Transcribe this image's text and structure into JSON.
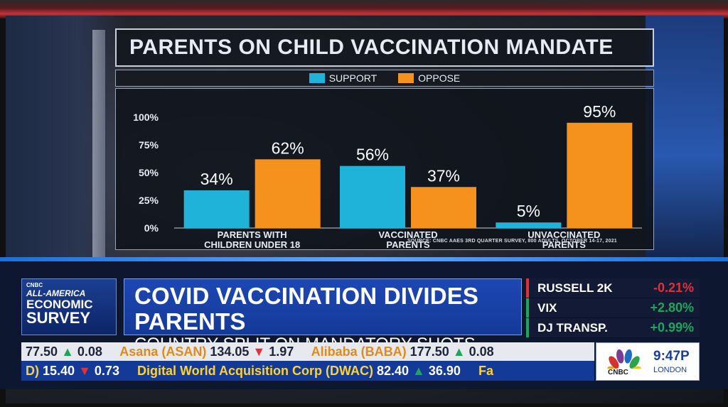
{
  "chart_data": {
    "type": "bar",
    "title": "PARENTS ON CHILD VACCINATION MANDATE",
    "categories": [
      "PARENTS WITH CHILDREN UNDER 18",
      "VACCINATED PARENTS",
      "UNVACCINATED PARENTS"
    ],
    "category_lines": [
      [
        "PARENTS WITH",
        "CHILDREN UNDER 18"
      ],
      [
        "VACCINATED",
        "PARENTS"
      ],
      [
        "UNVACCINATED",
        "PARENTS"
      ]
    ],
    "series": [
      {
        "name": "SUPPORT",
        "values": [
          34,
          56,
          5
        ],
        "labels": [
          "34%",
          "56%",
          "5%"
        ],
        "color": "#1fb3d9"
      },
      {
        "name": "OPPOSE",
        "values": [
          62,
          37,
          95
        ],
        "labels": [
          "62%",
          "37%",
          "95%"
        ],
        "color": "#f5921e"
      }
    ],
    "yticks": [
      "100%",
      "75%",
      "50%",
      "25%",
      "0%"
    ],
    "ylim": [
      0,
      100
    ],
    "grid": false,
    "legend": "top-center",
    "source": "SOURCE: CNBC AAES 3RD QUARTER SURVEY, 800 ADULTS, OCTOBER 14-17, 2021"
  },
  "brand": {
    "line1": "CNBC",
    "line2": "ALL-AMERICA",
    "line3": "ECONOMIC",
    "line4": "SURVEY"
  },
  "headline": {
    "main": "COVID VACCINATION DIVIDES PARENTS",
    "sub": "COUNTRY SPLIT ON MANDATORY SHOTS FOR CHILDREN"
  },
  "tickers": [
    {
      "name": "RUSSELL 2K",
      "value": "-0.21%",
      "direction": "down"
    },
    {
      "name": "VIX",
      "value": "+2.80%",
      "direction": "up"
    },
    {
      "name": "DJ TRANSP.",
      "value": "+0.99%",
      "direction": "up"
    }
  ],
  "crawl_top": {
    "lead_num": "77.50",
    "lead_change": "0.08",
    "stock1_name": "Asana (ASAN)",
    "stock1_price": "134.05",
    "stock1_change": "1.97",
    "stock2_name": "Alibaba (BABA)",
    "stock2_price": "177.50",
    "stock2_change": "0.08"
  },
  "crawl_bottom": {
    "lead_name": "D)",
    "lead_num": "15.40",
    "lead_change": "0.73",
    "stock1_name": "Digital World Acquisition Corp (DWAC)",
    "stock1_price": "82.40",
    "stock1_change": "36.90",
    "tail": "Fa"
  },
  "clock": {
    "network": "CNBC",
    "time": "9:47P",
    "city": "LONDON"
  },
  "colors": {
    "support": "#1fb3d9",
    "oppose": "#f5921e",
    "up": "#1aa65b",
    "down": "#e0303a"
  }
}
